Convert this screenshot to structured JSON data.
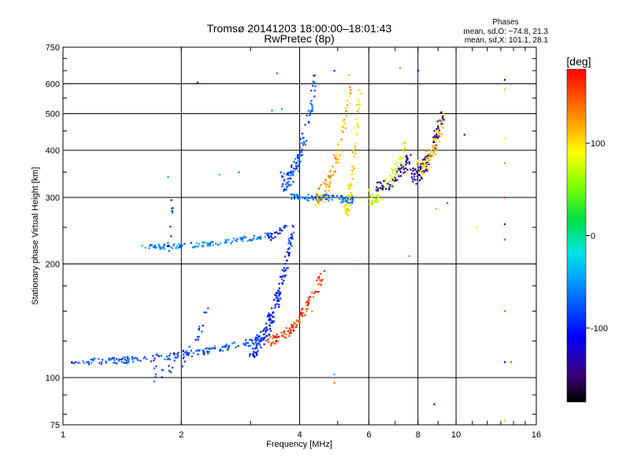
{
  "chart_data": {
    "type": "scatter",
    "title": "Tromsø 20141203 18:00:00–18:01:43",
    "subtitle": "RwPretec (8p)",
    "xlabel": "Frequency [MHz]",
    "ylabel": "Stationary phase Virtual Height [km]",
    "x_scale": "log",
    "y_scale": "log",
    "xlim": [
      1,
      16
    ],
    "ylim": [
      75,
      750
    ],
    "x_ticks": [
      1,
      2,
      4,
      6,
      8,
      10,
      16
    ],
    "y_ticks": [
      75,
      100,
      200,
      300,
      400,
      500,
      600,
      750
    ],
    "grid": true,
    "stats": {
      "heading": "Phases",
      "line_o": "mean, sd,O: −74.8, 21.3",
      "line_x": "mean, sd,X: 101.1, 28.1"
    },
    "colorbar": {
      "label": "[deg]",
      "range": [
        -180,
        180
      ],
      "ticks": [
        100,
        0,
        -100
      ],
      "colormap": "rainbow"
    },
    "traces": [
      {
        "f_start": 1.05,
        "f_end": 3.3,
        "h_start": 110,
        "h_end": 127,
        "phase": -80,
        "spread": 0.02,
        "n": 180
      },
      {
        "f_start": 3.0,
        "f_end": 3.85,
        "h_start": 120,
        "h_end": 250,
        "phase": -95,
        "spread": 0.06,
        "n": 170
      },
      {
        "f_start": 3.3,
        "f_end": 4.6,
        "h_start": 125,
        "h_end": 190,
        "phase": 160,
        "spread": 0.03,
        "n": 110
      },
      {
        "f_start": 1.6,
        "f_end": 3.4,
        "h_start": 222,
        "h_end": 240,
        "phase": -60,
        "spread": 0.015,
        "n": 110
      },
      {
        "f_start": 3.3,
        "f_end": 3.7,
        "h_start": 235,
        "h_end": 255,
        "phase": -100,
        "spread": 0.02,
        "n": 25
      },
      {
        "f_start": 3.8,
        "f_end": 5.5,
        "h_start": 300,
        "h_end": 295,
        "phase": -70,
        "spread": 0.02,
        "n": 90
      },
      {
        "f_start": 3.6,
        "f_end": 4.4,
        "h_start": 330,
        "h_end": 620,
        "phase": -80,
        "spread": 0.06,
        "n": 110
      },
      {
        "f_start": 4.4,
        "f_end": 5.4,
        "h_start": 300,
        "h_end": 600,
        "phase": 120,
        "spread": 0.06,
        "n": 90
      },
      {
        "f_start": 5.2,
        "f_end": 5.7,
        "h_start": 280,
        "h_end": 600,
        "phase": 100,
        "spread": 0.06,
        "n": 70
      },
      {
        "f_start": 6.0,
        "f_end": 7.5,
        "h_start": 300,
        "h_end": 420,
        "phase": 80,
        "spread": 0.05,
        "n": 80
      },
      {
        "f_start": 6.3,
        "f_end": 7.6,
        "h_start": 320,
        "h_end": 380,
        "phase": -130,
        "spread": 0.04,
        "n": 55
      },
      {
        "f_start": 7.7,
        "f_end": 9.3,
        "h_start": 340,
        "h_end": 520,
        "phase": -140,
        "spread": 0.05,
        "n": 90
      },
      {
        "f_start": 8.0,
        "f_end": 9.3,
        "h_start": 360,
        "h_end": 500,
        "phase": 110,
        "spread": 0.05,
        "n": 70
      },
      {
        "f_start": 1.85,
        "f_end": 1.9,
        "h_start": 220,
        "h_end": 300,
        "phase": -100,
        "spread": 0.02,
        "n": 12
      },
      {
        "f_start": 1.7,
        "f_end": 2.4,
        "h_start": 102,
        "h_end": 160,
        "phase": -90,
        "spread": 0.05,
        "n": 30
      }
    ],
    "isolated_points": [
      [
        2.2,
        605,
        -100
      ],
      [
        3.5,
        640,
        -60
      ],
      [
        3.4,
        510,
        -60
      ],
      [
        3.6,
        515,
        -50
      ],
      [
        4.9,
        650,
        -110
      ],
      [
        1.85,
        340,
        -50
      ],
      [
        2.5,
        345,
        -40
      ],
      [
        2.8,
        350,
        -60
      ],
      [
        13.3,
        615,
        -110
      ],
      [
        13.3,
        580,
        60
      ],
      [
        13.3,
        430,
        100
      ],
      [
        13.3,
        370,
        140
      ],
      [
        13.3,
        300,
        160
      ],
      [
        13.3,
        255,
        -130
      ],
      [
        13.3,
        232,
        -60
      ],
      [
        13.3,
        150,
        150
      ],
      [
        13.3,
        110,
        -110
      ],
      [
        13.8,
        110,
        150
      ],
      [
        13.3,
        77,
        60
      ],
      [
        10.5,
        440,
        -130
      ],
      [
        11.3,
        250,
        100
      ],
      [
        8.8,
        85,
        -130
      ],
      [
        7.6,
        210,
        -40
      ],
      [
        8.9,
        280,
        120
      ],
      [
        9.5,
        290,
        -70
      ],
      [
        4.9,
        102,
        -40
      ],
      [
        4.9,
        97,
        150
      ],
      [
        1.2,
        112,
        -30
      ],
      [
        7.2,
        660,
        140
      ],
      [
        8.0,
        650,
        -130
      ],
      [
        5.7,
        200,
        150
      ],
      [
        4.3,
        150,
        130
      ]
    ]
  }
}
